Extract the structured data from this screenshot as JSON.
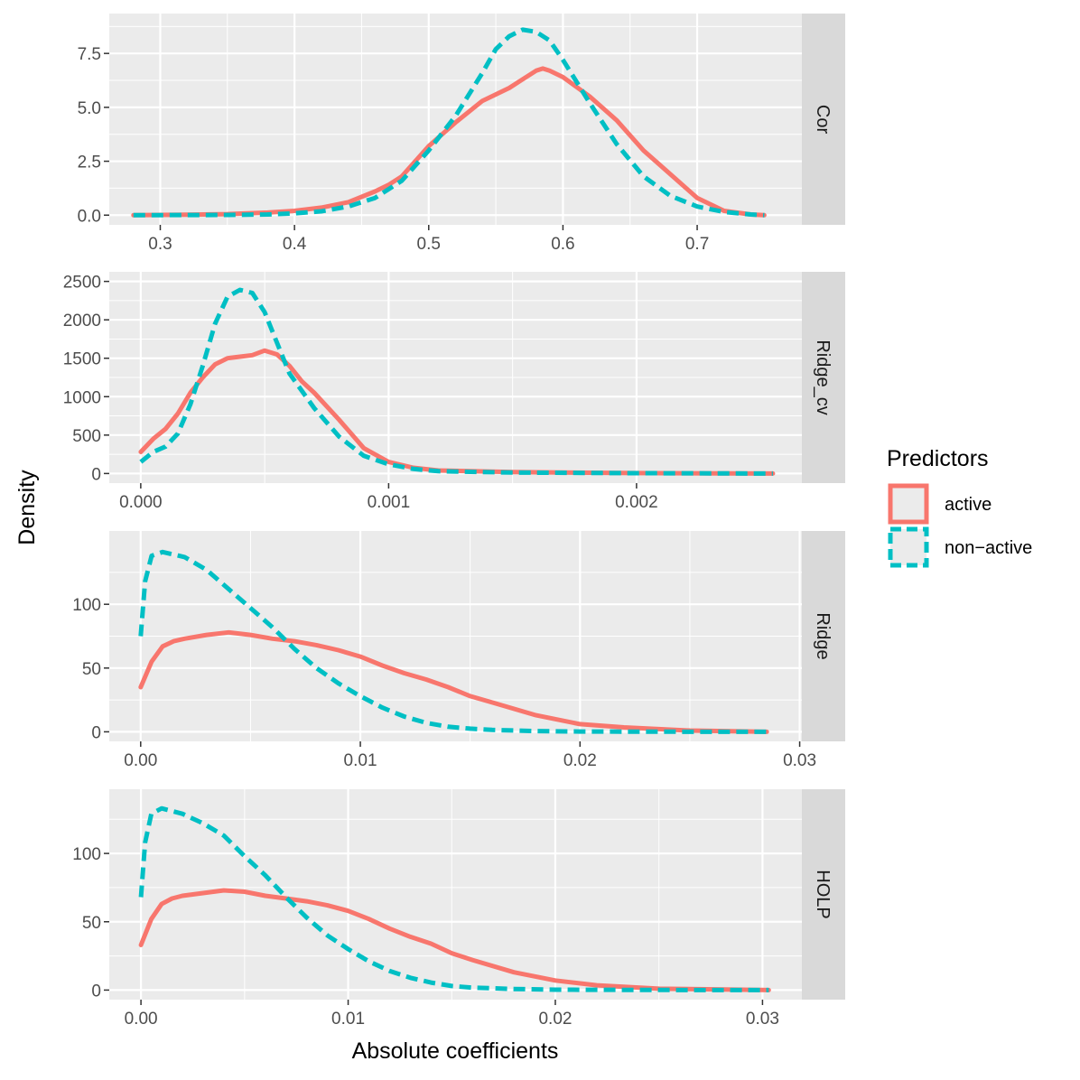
{
  "chart_data": {
    "type": "line",
    "ylabel": "Density",
    "xlabel": "Absolute coefficients",
    "legend": {
      "title": "Predictors",
      "position": "right",
      "items": [
        {
          "name": "active",
          "color": "#F8766D",
          "dash": "solid"
        },
        {
          "name": "non−active",
          "color": "#00BFC4",
          "dash": "dashed"
        }
      ]
    },
    "panels": [
      {
        "strip": "Cor",
        "xlim": [
          0.262,
          0.778
        ],
        "ylim": [
          -0.45,
          9.35
        ],
        "xticks": [
          0.3,
          0.4,
          0.5,
          0.6,
          0.7
        ],
        "xtick_labels": [
          "0.3",
          "0.4",
          "0.5",
          "0.6",
          "0.7"
        ],
        "yticks": [
          0,
          2.5,
          5,
          7.5
        ],
        "ytick_labels": [
          "0.0",
          "2.5",
          "5.0",
          "7.5"
        ],
        "series": [
          {
            "name": "active",
            "x": [
              0.28,
              0.32,
              0.35,
              0.38,
              0.4,
              0.42,
              0.44,
              0.46,
              0.47,
              0.48,
              0.5,
              0.52,
              0.54,
              0.56,
              0.57,
              0.58,
              0.585,
              0.59,
              0.6,
              0.62,
              0.64,
              0.66,
              0.68,
              0.7,
              0.72,
              0.74,
              0.75
            ],
            "y": [
              0,
              0.02,
              0.05,
              0.12,
              0.2,
              0.35,
              0.6,
              1.1,
              1.4,
              1.8,
              3.2,
              4.3,
              5.3,
              5.9,
              6.3,
              6.7,
              6.8,
              6.7,
              6.4,
              5.5,
              4.4,
              3.0,
              1.9,
              0.8,
              0.2,
              0.03,
              0
            ]
          },
          {
            "name": "non−active",
            "x": [
              0.28,
              0.35,
              0.38,
              0.4,
              0.42,
              0.44,
              0.46,
              0.48,
              0.5,
              0.52,
              0.54,
              0.55,
              0.56,
              0.57,
              0.58,
              0.59,
              0.6,
              0.62,
              0.64,
              0.66,
              0.68,
              0.7,
              0.72,
              0.74,
              0.75
            ],
            "y": [
              0,
              0.01,
              0.03,
              0.08,
              0.18,
              0.4,
              0.8,
              1.6,
              3.0,
              4.6,
              6.6,
              7.7,
              8.3,
              8.6,
              8.5,
              8.1,
              7.2,
              5.2,
              3.3,
              1.8,
              0.9,
              0.4,
              0.15,
              0.03,
              0
            ]
          }
        ]
      },
      {
        "strip": "Ridge_cv",
        "xlim": [
          -0.000127,
          0.002667
        ],
        "ylim": [
          -125,
          2625
        ],
        "xticks": [
          0,
          0.001,
          0.002
        ],
        "xtick_labels": [
          "0.000",
          "0.001",
          "0.002"
        ],
        "yticks": [
          0,
          500,
          1000,
          1500,
          2000,
          2500
        ],
        "ytick_labels": [
          "0",
          "500",
          "1000",
          "1500",
          "2000",
          "2500"
        ],
        "series": [
          {
            "name": "active",
            "x": [
              0,
              5e-05,
              0.0001,
              0.00015,
              0.0002,
              0.00025,
              0.0003,
              0.00035,
              0.0004,
              0.00045,
              0.0005,
              0.00055,
              0.0006,
              0.00065,
              0.0007,
              0.0008,
              0.0009,
              0.001,
              0.0011,
              0.0012,
              0.0015,
              0.002,
              0.00255
            ],
            "y": [
              280,
              450,
              580,
              780,
              1050,
              1250,
              1420,
              1500,
              1520,
              1540,
              1600,
              1550,
              1400,
              1200,
              1050,
              700,
              330,
              150,
              75,
              40,
              18,
              6,
              0
            ]
          },
          {
            "name": "non−active",
            "x": [
              0,
              5e-05,
              0.0001,
              0.00015,
              0.0002,
              0.00025,
              0.0003,
              0.00035,
              0.0004,
              0.00045,
              0.0005,
              0.00055,
              0.0006,
              0.0007,
              0.0008,
              0.0009,
              0.001,
              0.0011,
              0.0012,
              0.0015,
              0.002,
              0.00255
            ],
            "y": [
              150,
              280,
              350,
              520,
              900,
              1400,
              1950,
              2300,
              2390,
              2350,
              2100,
              1700,
              1300,
              850,
              480,
              230,
              120,
              60,
              30,
              12,
              4,
              0
            ]
          }
        ]
      },
      {
        "strip": "Ridge",
        "xlim": [
          -0.00143,
          0.0301
        ],
        "ylim": [
          -7.5,
          157.5
        ],
        "xticks": [
          0,
          0.01,
          0.02,
          0.03
        ],
        "xtick_labels": [
          "0.00",
          "0.01",
          "0.02",
          "0.03"
        ],
        "yticks": [
          0,
          50,
          100
        ],
        "ytick_labels": [
          "0",
          "50",
          "100"
        ],
        "series": [
          {
            "name": "active",
            "x": [
              0,
              0.0005,
              0.001,
              0.0015,
              0.002,
              0.003,
              0.004,
              0.005,
              0.006,
              0.007,
              0.008,
              0.009,
              0.01,
              0.011,
              0.012,
              0.013,
              0.014,
              0.015,
              0.016,
              0.018,
              0.02,
              0.022,
              0.025,
              0.0285
            ],
            "y": [
              35,
              55,
              67,
              71,
              73,
              76,
              78,
              76,
              73,
              71,
              68,
              64,
              59,
              52,
              46,
              41,
              35,
              28,
              23,
              13,
              6,
              3.5,
              1,
              0
            ]
          },
          {
            "name": "non−active",
            "x": [
              0,
              0.0002,
              0.0005,
              0.001,
              0.0015,
              0.002,
              0.003,
              0.004,
              0.005,
              0.006,
              0.007,
              0.008,
              0.009,
              0.01,
              0.011,
              0.012,
              0.013,
              0.014,
              0.015,
              0.016,
              0.018,
              0.02,
              0.024,
              0.0285
            ],
            "y": [
              75,
              118,
              138,
              141,
              139,
              137,
              127,
              112,
              97,
              82,
              65,
              50,
              38,
              28,
              19,
              12,
              7,
              4,
              2.5,
              1.5,
              0.6,
              0.2,
              0.05,
              0
            ]
          }
        ]
      },
      {
        "strip": "HOLP",
        "xlim": [
          -0.00153,
          0.0319
        ],
        "ylim": [
          -7,
          147
        ],
        "xticks": [
          0,
          0.01,
          0.02,
          0.03
        ],
        "xtick_labels": [
          "0.00",
          "0.01",
          "0.02",
          "0.03"
        ],
        "yticks": [
          0,
          50,
          100
        ],
        "ytick_labels": [
          "0",
          "50",
          "100"
        ],
        "series": [
          {
            "name": "active",
            "x": [
              0,
              0.0005,
              0.001,
              0.0015,
              0.002,
              0.003,
              0.004,
              0.005,
              0.006,
              0.007,
              0.008,
              0.009,
              0.01,
              0.011,
              0.012,
              0.013,
              0.014,
              0.015,
              0.016,
              0.018,
              0.02,
              0.022,
              0.025,
              0.0303
            ],
            "y": [
              33,
              52,
              63,
              67,
              69,
              71,
              73,
              72,
              69,
              67,
              65,
              62,
              58,
              52,
              45,
              39,
              34,
              27,
              22,
              13,
              7,
              3.5,
              1,
              0
            ]
          },
          {
            "name": "non−active",
            "x": [
              0,
              0.0002,
              0.0005,
              0.001,
              0.0015,
              0.002,
              0.003,
              0.004,
              0.005,
              0.006,
              0.007,
              0.008,
              0.009,
              0.01,
              0.011,
              0.012,
              0.013,
              0.014,
              0.015,
              0.016,
              0.018,
              0.02,
              0.025,
              0.0303
            ],
            "y": [
              68,
              108,
              129,
              133,
              131,
              129,
              122,
              113,
              98,
              84,
              68,
              53,
              40,
              30,
              21,
              14,
              9,
              5.5,
              3,
              1.8,
              0.8,
              0.3,
              0.05,
              0
            ]
          }
        ]
      }
    ]
  }
}
